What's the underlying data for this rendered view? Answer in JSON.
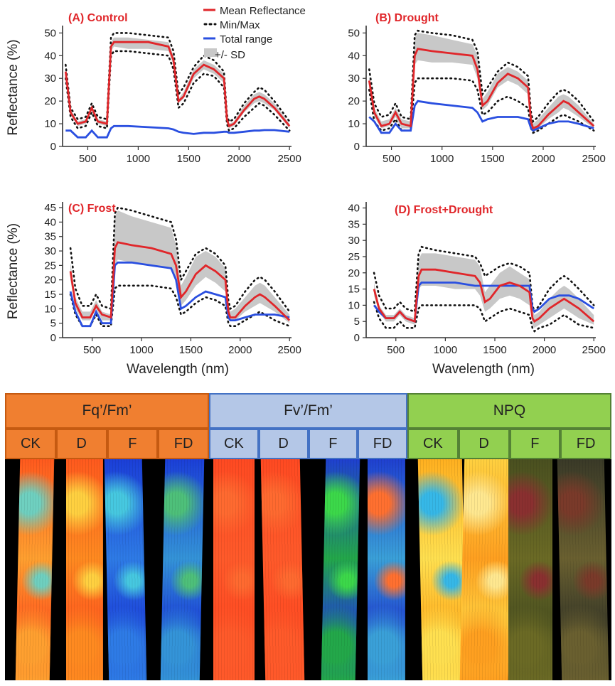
{
  "chart_data": [
    {
      "type": "line",
      "id": "control",
      "title": "(A) Control",
      "xlabel": "",
      "ylabel": "Reflectance (%)",
      "xlim": [
        250,
        2520
      ],
      "ylim": [
        0,
        52
      ],
      "xticks": [
        500,
        1000,
        1500,
        2000,
        2500
      ],
      "yticks": [
        0,
        10,
        20,
        30,
        40,
        50
      ],
      "legend": [
        "Mean Reflectance",
        "Min/Max",
        "Total range",
        "+/- SD"
      ],
      "x": [
        280,
        330,
        400,
        480,
        540,
        600,
        690,
        730,
        760,
        900,
        1100,
        1300,
        1350,
        1400,
        1450,
        1550,
        1650,
        1750,
        1850,
        1880,
        1900,
        1950,
        2050,
        2150,
        2200,
        2250,
        2350,
        2500
      ],
      "series": [
        {
          "name": "Mean Reflectance",
          "values": [
            33,
            15,
            10,
            11,
            17,
            11,
            10,
            44,
            46,
            46,
            46,
            44,
            38,
            20,
            22,
            32,
            36,
            34,
            30,
            12,
            9,
            10,
            16,
            21,
            22,
            21,
            17,
            9
          ]
        },
        {
          "name": "SD upper",
          "values": [
            34,
            16,
            11,
            12,
            18,
            12,
            11,
            46,
            48,
            48,
            47,
            46,
            40,
            21,
            24,
            34,
            38,
            36,
            32,
            13,
            10,
            11,
            18,
            23,
            24,
            23,
            19,
            10
          ]
        },
        {
          "name": "SD lower",
          "values": [
            31,
            14,
            9,
            10,
            16,
            10,
            9,
            42,
            44,
            43,
            43,
            42,
            36,
            19,
            21,
            30,
            34,
            32,
            28,
            11,
            8,
            9,
            15,
            19,
            20,
            19,
            16,
            8
          ]
        },
        {
          "name": "Max",
          "values": [
            36,
            17,
            12,
            13,
            19,
            13,
            12,
            48,
            50,
            50,
            49,
            48,
            42,
            23,
            26,
            35,
            40,
            38,
            33,
            14,
            11,
            12,
            19,
            24,
            26,
            25,
            20,
            11
          ]
        },
        {
          "name": "Min",
          "values": [
            30,
            13,
            8,
            9,
            15,
            9,
            8,
            40,
            42,
            42,
            41,
            40,
            34,
            17,
            19,
            28,
            32,
            31,
            26,
            10,
            7,
            8,
            13,
            17,
            19,
            18,
            14,
            7
          ]
        },
        {
          "name": "Total range",
          "values": [
            7,
            7,
            4,
            4,
            7,
            4,
            4,
            8,
            9,
            9,
            8.5,
            8,
            7.5,
            6.5,
            6,
            5.5,
            6,
            6,
            6.5,
            6.5,
            6,
            6,
            6.5,
            7,
            7,
            7.2,
            7.2,
            6.5
          ]
        }
      ]
    },
    {
      "type": "line",
      "id": "drought",
      "title": "(B) Drought",
      "xlabel": "",
      "ylabel": "",
      "xlim": [
        250,
        2520
      ],
      "ylim": [
        0,
        52
      ],
      "xticks": [
        500,
        1000,
        1500,
        2000,
        2500
      ],
      "yticks": [
        0,
        10,
        20,
        30,
        40,
        50
      ],
      "x": [
        280,
        330,
        400,
        480,
        540,
        600,
        690,
        730,
        760,
        900,
        1100,
        1300,
        1350,
        1400,
        1450,
        1550,
        1650,
        1750,
        1850,
        1880,
        1900,
        1950,
        2050,
        2150,
        2200,
        2250,
        2350,
        2500
      ],
      "series": [
        {
          "name": "Mean Reflectance",
          "values": [
            29,
            15,
            9,
            10,
            15,
            10,
            9,
            40,
            43,
            42,
            41,
            40,
            34,
            18,
            20,
            28,
            32,
            30,
            26,
            11,
            8,
            9,
            14,
            18,
            20,
            19,
            15,
            9
          ]
        },
        {
          "name": "SD upper",
          "values": [
            31,
            17,
            11,
            12,
            17,
            12,
            11,
            48,
            50,
            49,
            47,
            45,
            40,
            21,
            24,
            32,
            35,
            33,
            29,
            14,
            10,
            12,
            17,
            22,
            23,
            22,
            18,
            10
          ]
        },
        {
          "name": "SD lower",
          "values": [
            27,
            13,
            8,
            9,
            13,
            8,
            8,
            36,
            38,
            37,
            37,
            36,
            30,
            16,
            18,
            26,
            29,
            27,
            23,
            9,
            7,
            8,
            12,
            15,
            17,
            16,
            13,
            8
          ]
        },
        {
          "name": "Max",
          "values": [
            34,
            19,
            13,
            14,
            19,
            13,
            12,
            49,
            51,
            50,
            49,
            47,
            42,
            23,
            26,
            33,
            37,
            35,
            31,
            15,
            11,
            13,
            19,
            24,
            25,
            24,
            20,
            11
          ]
        },
        {
          "name": "Min",
          "values": [
            25,
            11,
            7,
            8,
            12,
            7,
            7,
            28,
            30,
            30,
            30,
            29,
            25,
            14,
            15,
            20,
            22,
            20,
            17,
            8,
            6,
            7,
            10,
            13,
            14,
            13,
            11,
            7
          ]
        },
        {
          "name": "Total range",
          "values": [
            13,
            11,
            6,
            6,
            10,
            7,
            7,
            18,
            20,
            19,
            18,
            17,
            15,
            11,
            12,
            13,
            13,
            13,
            12,
            8,
            7,
            8,
            10,
            11,
            11,
            11,
            10,
            8
          ]
        }
      ]
    },
    {
      "type": "line",
      "id": "frost",
      "title": "(C) Frost",
      "xlabel": "Wavelength (nm)",
      "ylabel": "Reflectance (%)",
      "xlim": [
        200,
        2520
      ],
      "ylim": [
        0,
        46
      ],
      "xticks": [
        500,
        1000,
        1500,
        2000,
        2500
      ],
      "yticks": [
        0,
        5,
        10,
        15,
        20,
        25,
        30,
        35,
        40,
        45
      ],
      "x": [
        280,
        330,
        400,
        480,
        540,
        600,
        690,
        730,
        760,
        900,
        1100,
        1300,
        1350,
        1400,
        1450,
        1550,
        1650,
        1750,
        1850,
        1880,
        1900,
        1950,
        2050,
        2150,
        2200,
        2250,
        2350,
        2500
      ],
      "series": [
        {
          "name": "Mean Reflectance",
          "values": [
            23,
            12,
            7,
            7,
            11,
            8,
            7,
            31,
            33,
            32,
            31,
            29,
            25,
            14,
            16,
            22,
            25,
            23,
            20,
            9,
            7,
            7,
            11,
            14,
            15,
            14,
            11,
            6
          ]
        },
        {
          "name": "SD upper",
          "values": [
            26,
            14,
            9,
            9,
            13,
            9,
            8,
            42,
            44,
            42,
            40,
            38,
            32,
            18,
            21,
            28,
            30,
            28,
            24,
            12,
            9,
            10,
            14,
            18,
            19,
            18,
            14,
            8
          ]
        },
        {
          "name": "SD lower",
          "values": [
            20,
            10,
            6,
            6,
            10,
            6,
            6,
            25,
            27,
            26,
            25,
            24,
            20,
            11,
            13,
            18,
            21,
            19,
            16,
            7,
            6,
            6,
            9,
            11,
            12,
            11,
            9,
            5
          ]
        },
        {
          "name": "Max",
          "values": [
            31,
            17,
            11,
            11,
            15,
            11,
            10,
            43,
            45,
            44,
            42,
            40,
            34,
            20,
            23,
            29,
            31,
            29,
            25,
            13,
            10,
            11,
            16,
            20,
            21,
            20,
            16,
            9
          ]
        },
        {
          "name": "Min",
          "values": [
            15,
            8,
            4,
            4,
            8,
            4,
            4,
            17,
            18,
            18,
            18,
            17,
            14,
            8,
            9,
            12,
            14,
            13,
            11,
            5,
            4,
            4,
            6,
            8,
            9,
            8,
            6,
            4
          ]
        },
        {
          "name": "Total range",
          "values": [
            16,
            9,
            4,
            4,
            9,
            5,
            5,
            25,
            26,
            26,
            25,
            24,
            20,
            10,
            11,
            14,
            16,
            15,
            14,
            7,
            6,
            6,
            7,
            8,
            8,
            8,
            8,
            7
          ]
        }
      ]
    },
    {
      "type": "line",
      "id": "frost-drought",
      "title": "(D) Frost+Drought",
      "xlabel": "Wavelength (nm)",
      "ylabel": "",
      "xlim": [
        200,
        2520
      ],
      "ylim": [
        0,
        41
      ],
      "xticks": [
        500,
        1000,
        1500,
        2000,
        2500
      ],
      "yticks": [
        0,
        5,
        10,
        15,
        20,
        25,
        30,
        35,
        40
      ],
      "x": [
        280,
        330,
        400,
        480,
        540,
        600,
        690,
        730,
        760,
        900,
        1100,
        1300,
        1350,
        1400,
        1450,
        1550,
        1650,
        1750,
        1850,
        1880,
        1900,
        1950,
        2050,
        2150,
        2200,
        2250,
        2350,
        2500
      ],
      "series": [
        {
          "name": "Mean Reflectance",
          "values": [
            15,
            9,
            6,
            6,
            8,
            6,
            5,
            19,
            21,
            21,
            20,
            19,
            17,
            11,
            12,
            16,
            17,
            16,
            14,
            6,
            5,
            6,
            9,
            11,
            12,
            11,
            9,
            5
          ]
        },
        {
          "name": "SD upper",
          "values": [
            17,
            10,
            7,
            7,
            9,
            7,
            6,
            24,
            26,
            26,
            25,
            24,
            22,
            14,
            16,
            20,
            22,
            20,
            18,
            9,
            7,
            8,
            12,
            15,
            16,
            15,
            12,
            7
          ]
        },
        {
          "name": "SD lower",
          "values": [
            13,
            8,
            5,
            5,
            7,
            5,
            4,
            15,
            16,
            16,
            15,
            15,
            13,
            8,
            9,
            12,
            13,
            12,
            10,
            4,
            3,
            4,
            6,
            8,
            9,
            8,
            6,
            4
          ]
        },
        {
          "name": "Max",
          "values": [
            20,
            13,
            9,
            9,
            11,
            9,
            8,
            26,
            28,
            27,
            26,
            25,
            23,
            19,
            20,
            22,
            23,
            22,
            20,
            10,
            8,
            10,
            15,
            18,
            19,
            18,
            15,
            10
          ]
        },
        {
          "name": "Min",
          "values": [
            11,
            6,
            3,
            3,
            5,
            3,
            3,
            9,
            10,
            10,
            10,
            10,
            9,
            5,
            6,
            8,
            9,
            8,
            7,
            3,
            2,
            3,
            4,
            6,
            7,
            6,
            4,
            3
          ]
        },
        {
          "name": "Total range",
          "values": [
            10,
            8,
            6,
            6,
            8,
            6,
            5,
            16,
            17,
            17,
            17,
            16,
            16,
            16,
            16,
            16,
            16,
            16,
            16,
            9,
            8,
            9,
            12,
            13,
            13,
            13,
            12,
            9
          ]
        }
      ]
    },
    {
      "type": "heatmap",
      "id": "chlorophyll-fluorescence-images",
      "groups": [
        {
          "label": "Fq’/Fm’",
          "color": "#f07f30",
          "border": "#c55a11",
          "subs": [
            "CK",
            "D",
            "F",
            "FD"
          ]
        },
        {
          "label": "Fv’/Fm’",
          "color": "#b4c7e7",
          "border": "#4472c4",
          "subs": [
            "CK",
            "D",
            "F",
            "FD"
          ]
        },
        {
          "label": "NPQ",
          "color": "#92d050",
          "border": "#548235",
          "subs": [
            "CK",
            "D",
            "F",
            "FD"
          ]
        }
      ],
      "strips": [
        {
          "label": "Fq'/Fm' CK",
          "colors": [
            "#ff5a1e",
            "#ffa030",
            "#6fd0c0"
          ]
        },
        {
          "label": "Fq'/Fm' D",
          "colors": [
            "#ff5a1e",
            "#ff8a20",
            "#ffd040"
          ]
        },
        {
          "label": "Fq'/Fm' F",
          "colors": [
            "#1b3fd8",
            "#2e7be6",
            "#46c8e0"
          ]
        },
        {
          "label": "Fq'/Fm' FD",
          "colors": [
            "#1b3fd8",
            "#3494d8",
            "#4ec07a"
          ]
        },
        {
          "label": "Fv'/Fm' CK",
          "colors": [
            "#ff4a22",
            "#ff5a2a",
            "#ff6a30"
          ]
        },
        {
          "label": "Fv'/Fm' D",
          "colors": [
            "#ff4a22",
            "#ff5a2a",
            "#ff6a30"
          ]
        },
        {
          "label": "Fv'/Fm' F",
          "colors": [
            "#1f40d0",
            "#23a84a",
            "#3cd84a"
          ]
        },
        {
          "label": "Fv'/Fm' FD",
          "colors": [
            "#1f40d0",
            "#3aa0d8",
            "#ff7030"
          ]
        },
        {
          "label": "NPQ CK",
          "colors": [
            "#ffb020",
            "#ffe050",
            "#36b8e8"
          ]
        },
        {
          "label": "NPQ D",
          "colors": [
            "#ffd040",
            "#ffa020",
            "#ffe890"
          ]
        },
        {
          "label": "NPQ F",
          "colors": [
            "#4a5020",
            "#6b6a25",
            "#8a3030"
          ]
        },
        {
          "label": "NPQ FD",
          "colors": [
            "#3a3a28",
            "#6a6030",
            "#7a3a2a"
          ]
        }
      ]
    }
  ]
}
